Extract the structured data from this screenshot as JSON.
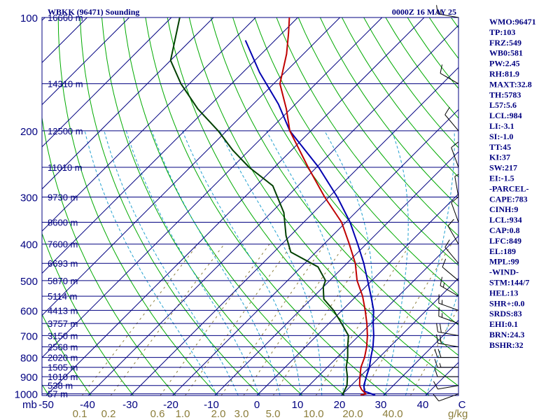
{
  "header": {
    "title_left": "WBKK (96471) Sounding",
    "title_right": "0000Z 16 MAY 25"
  },
  "chart_data": {
    "type": "skew-t",
    "pressure_levels": [
      100,
      200,
      300,
      400,
      500,
      600,
      700,
      800,
      900,
      1000
    ],
    "height_labels": [
      {
        "p": 100,
        "h": "16660 m"
      },
      {
        "p": 150,
        "h": "14310 m"
      },
      {
        "p": 200,
        "h": "12500 m"
      },
      {
        "p": 250,
        "h": "11010 m"
      },
      {
        "p": 300,
        "h": "9730 m"
      },
      {
        "p": 350,
        "h": "8600 m"
      },
      {
        "p": 400,
        "h": "7600 m"
      },
      {
        "p": 450,
        "h": "6693 m"
      },
      {
        "p": 500,
        "h": "5870 m"
      },
      {
        "p": 550,
        "h": "5114 m"
      },
      {
        "p": 600,
        "h": "4413 m"
      },
      {
        "p": 650,
        "h": "3757 m"
      },
      {
        "p": 700,
        "h": "3150 m"
      },
      {
        "p": 750,
        "h": "2568 m"
      },
      {
        "p": 800,
        "h": "2020 m"
      },
      {
        "p": 850,
        "h": "1505 m"
      },
      {
        "p": 900,
        "h": "1010 m"
      },
      {
        "p": 950,
        "h": "538 m"
      },
      {
        "p": 1000,
        "h": "57 m"
      }
    ],
    "pressure_unit_label": "mb",
    "temperature_ticks": [
      "-50",
      "-40",
      "-30",
      "-20",
      "-10",
      "0",
      "10",
      "20",
      "30",
      "40",
      "C"
    ],
    "mixing_ratio_ticks": [
      "0.1",
      "0.2",
      "0.6",
      "1.0",
      "2.0",
      "3.0",
      "5.0",
      "10.0",
      "20.0",
      "40.0"
    ],
    "mixing_ratio_unit": "g/kg",
    "temperature_profile": [
      [
        1008,
        24.5
      ],
      [
        1000,
        25.5
      ],
      [
        975,
        23.5
      ],
      [
        950,
        22.0
      ],
      [
        925,
        21.0
      ],
      [
        900,
        20.0
      ],
      [
        850,
        18.0
      ],
      [
        800,
        16.5
      ],
      [
        750,
        14.5
      ],
      [
        700,
        12.0
      ],
      [
        650,
        9.0
      ],
      [
        600,
        5.5
      ],
      [
        550,
        1.5
      ],
      [
        500,
        -3.5
      ],
      [
        450,
        -8.0
      ],
      [
        400,
        -14.0
      ],
      [
        350,
        -21.0
      ],
      [
        300,
        -31.0
      ],
      [
        250,
        -42.0
      ],
      [
        200,
        -55.0
      ],
      [
        175,
        -61.0
      ],
      [
        150,
        -68.5
      ],
      [
        125,
        -74.0
      ],
      [
        110,
        -78.5
      ],
      [
        100,
        -82.0
      ]
    ],
    "dewpoint_profile": [
      [
        1008,
        20.5
      ],
      [
        1000,
        20.0
      ],
      [
        950,
        19.0
      ],
      [
        900,
        17.0
      ],
      [
        850,
        14.5
      ],
      [
        800,
        12.5
      ],
      [
        750,
        10.0
      ],
      [
        700,
        7.5
      ],
      [
        650,
        3.0
      ],
      [
        600,
        -2.0
      ],
      [
        560,
        -7.0
      ],
      [
        520,
        -10.0
      ],
      [
        500,
        -11.0
      ],
      [
        460,
        -16.0
      ],
      [
        420,
        -26.0
      ],
      [
        380,
        -31.0
      ],
      [
        330,
        -37.0
      ],
      [
        280,
        -46.0
      ],
      [
        250,
        -56.0
      ],
      [
        225,
        -64.0
      ],
      [
        200,
        -72.0
      ],
      [
        175,
        -82.0
      ],
      [
        150,
        -92.0
      ],
      [
        130,
        -100.0
      ],
      [
        100,
        -108.0
      ]
    ],
    "parcel_profile": [
      [
        1008,
        28.0
      ],
      [
        984,
        24.5
      ],
      [
        950,
        23.0
      ],
      [
        900,
        21.5
      ],
      [
        850,
        20.0
      ],
      [
        800,
        18.0
      ],
      [
        750,
        16.0
      ],
      [
        700,
        13.5
      ],
      [
        650,
        10.5
      ],
      [
        600,
        7.5
      ],
      [
        550,
        3.5
      ],
      [
        500,
        -1.0
      ],
      [
        450,
        -6.0
      ],
      [
        400,
        -12.0
      ],
      [
        350,
        -19.0
      ],
      [
        300,
        -28.0
      ],
      [
        250,
        -39.5
      ],
      [
        200,
        -55.0
      ],
      [
        170,
        -64.0
      ],
      [
        140,
        -76.0
      ],
      [
        115,
        -87.0
      ]
    ],
    "wind_barbs": [
      {
        "p": 1000,
        "dir": 250,
        "spd": 10
      },
      {
        "p": 950,
        "dir": 260,
        "spd": 10
      },
      {
        "p": 900,
        "dir": 270,
        "spd": 10
      },
      {
        "p": 850,
        "dir": 270,
        "spd": 15
      },
      {
        "p": 800,
        "dir": 270,
        "spd": 20
      },
      {
        "p": 750,
        "dir": 280,
        "spd": 20
      },
      {
        "p": 700,
        "dir": 280,
        "spd": 20
      },
      {
        "p": 650,
        "dir": 290,
        "spd": 15
      },
      {
        "p": 600,
        "dir": 290,
        "spd": 15
      },
      {
        "p": 550,
        "dir": 300,
        "spd": 15
      },
      {
        "p": 500,
        "dir": 310,
        "spd": 10
      },
      {
        "p": 450,
        "dir": 320,
        "spd": 10
      },
      {
        "p": 400,
        "dir": 330,
        "spd": 10
      },
      {
        "p": 350,
        "dir": 340,
        "spd": 10
      },
      {
        "p": 300,
        "dir": 350,
        "spd": 5
      },
      {
        "p": 250,
        "dir": 340,
        "spd": 10
      },
      {
        "p": 200,
        "dir": 320,
        "spd": 10
      },
      {
        "p": 150,
        "dir": 300,
        "spd": 10
      },
      {
        "p": 100,
        "dir": 280,
        "spd": 15
      }
    ],
    "indices": [
      "WMO:96471",
      "TP:103",
      "FRZ:549",
      "WB0:581",
      "PW:2.45",
      "RH:81.9",
      "MAXT:32.8",
      "TH:5783",
      "L57:5.6",
      "LCL:984",
      "LI:-3.1",
      "SI:-1.0",
      "TT:45",
      "KI:37",
      "SW:217",
      "EI:-1.5",
      "-PARCEL-",
      "CAPE:783",
      "CINH:9",
      "LCL:934",
      "CAP:0.8",
      "LFC:849",
      "EL:189",
      "MPL:99",
      "-WIND-",
      "STM:144/7",
      "HEL:13",
      "SHR+:0.0",
      "SRDS:83",
      "EHI:0.1",
      "BRN:24.3",
      "BSHR:32"
    ],
    "colors": {
      "isobar": "#000080",
      "isotherm": "#000080",
      "dry_adiabat": "#00aa00",
      "moist_adiabat": "#22a0d0",
      "mixing_ratio": "#8b7d3a",
      "temperature": "#c00000",
      "dewpoint": "#004000",
      "parcel": "#0000b0",
      "barb": "#000000",
      "axis": "#000080"
    }
  }
}
